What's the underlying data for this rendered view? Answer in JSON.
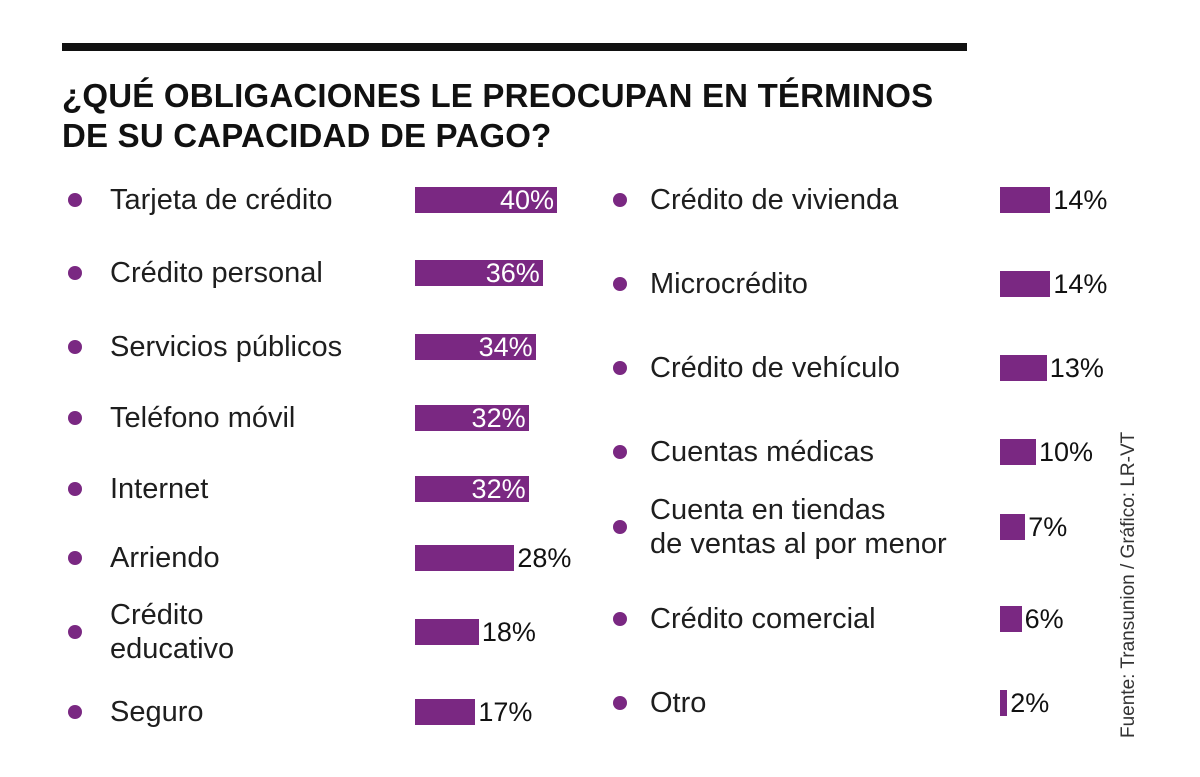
{
  "title_lines": [
    "¿QUÉ OBLIGACIONES LE PREOCUPAN EN TÉRMINOS",
    "DE SU CAPACIDAD DE PAGO?"
  ],
  "source": "Fuente: Transunion / Gráfico: LR-VT",
  "chart_data": {
    "type": "bar",
    "orientation": "horizontal",
    "title": "¿QUÉ OBLIGACIONES LE PREOCUPAN EN TÉRMINOS DE SU CAPACIDAD DE PAGO?",
    "unit": "%",
    "bar_color": "#7a2882",
    "columns": [
      [
        {
          "label_lines": [
            "Tarjeta de crédito"
          ],
          "value": 40,
          "display": "40%"
        },
        {
          "label_lines": [
            "Crédito personal"
          ],
          "value": 36,
          "display": "36%"
        },
        {
          "label_lines": [
            "Servicios públicos"
          ],
          "value": 34,
          "display": "34%"
        },
        {
          "label_lines": [
            "Teléfono móvil"
          ],
          "value": 32,
          "display": "32%"
        },
        {
          "label_lines": [
            "Internet"
          ],
          "value": 32,
          "display": "32%"
        },
        {
          "label_lines": [
            "Arriendo"
          ],
          "value": 28,
          "display": "28%"
        },
        {
          "label_lines": [
            "Crédito",
            "educativo"
          ],
          "value": 18,
          "display": "18%"
        },
        {
          "label_lines": [
            "Seguro"
          ],
          "value": 17,
          "display": "17%"
        }
      ],
      [
        {
          "label_lines": [
            "Crédito de vivienda"
          ],
          "value": 14,
          "display": "14%"
        },
        {
          "label_lines": [
            "Microcrédito"
          ],
          "value": 14,
          "display": "14%"
        },
        {
          "label_lines": [
            "Crédito de vehículo"
          ],
          "value": 13,
          "display": "13%"
        },
        {
          "label_lines": [
            "Cuentas médicas"
          ],
          "value": 10,
          "display": "10%"
        },
        {
          "label_lines": [
            "Cuenta en tiendas",
            "de ventas al por menor"
          ],
          "value": 7,
          "display": "7%"
        },
        {
          "label_lines": [
            "Crédito comercial"
          ],
          "value": 6,
          "display": "6%"
        },
        {
          "label_lines": [
            "Otro"
          ],
          "value": 2,
          "display": "2%"
        }
      ]
    ]
  }
}
